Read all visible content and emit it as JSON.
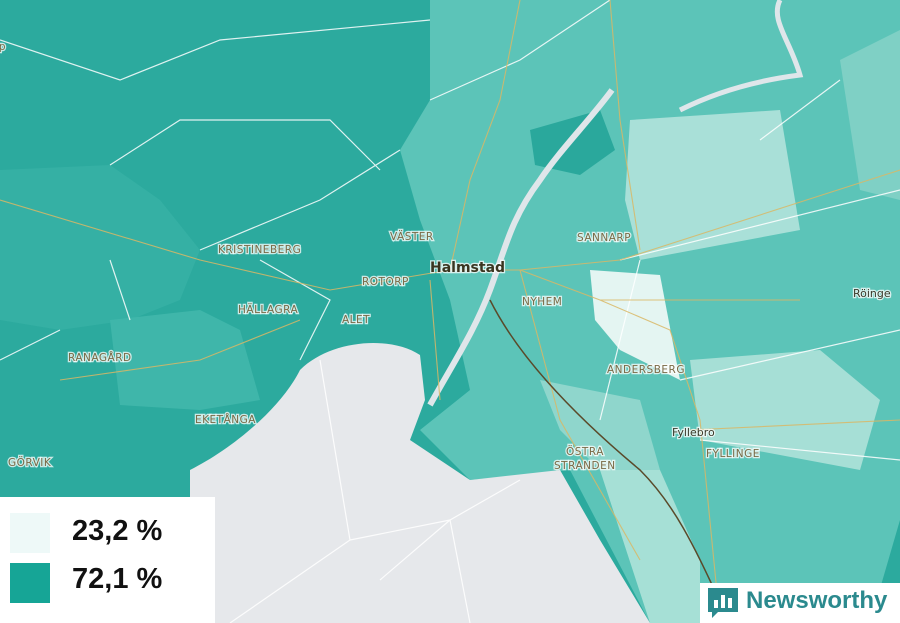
{
  "map": {
    "labels": [
      "rp",
      "KRISTINEBERG",
      "VÄSTER",
      "Halmstad",
      "SANNARP",
      "ROTORP",
      "NYHEM",
      "HÄLLAGRA",
      "ALET",
      "Röinge",
      "RANAGÅRD",
      "ANDERSBERG",
      "EKETÅNGA",
      "Fyllebro",
      "ÖSTRA",
      "STRANDEN",
      "FYLLINGE",
      "GÖRVIK"
    ]
  },
  "legend": {
    "items": [
      {
        "label": "23,2 %"
      },
      {
        "label": "72,1 %"
      }
    ]
  },
  "logo": {
    "text": "Newsworthy"
  }
}
